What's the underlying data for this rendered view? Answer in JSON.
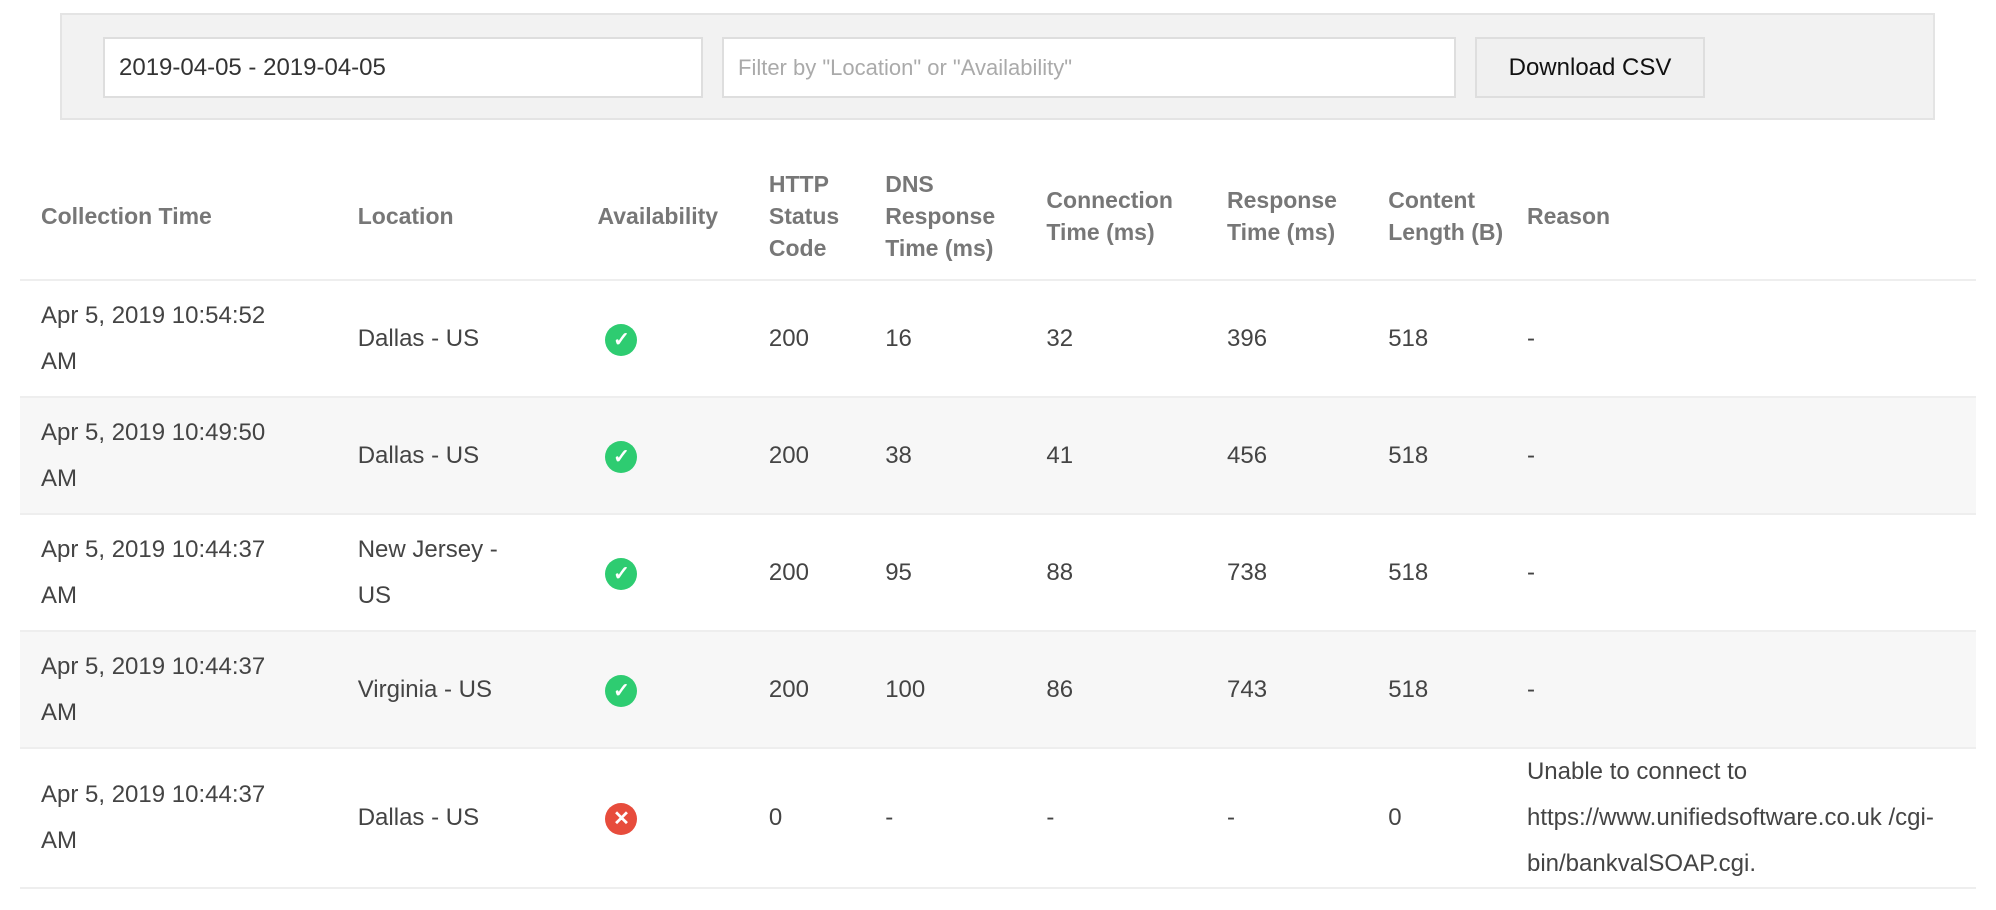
{
  "toolbar": {
    "date_range": "2019-04-05 - 2019-04-05",
    "filter_placeholder": "Filter by \"Location\" or \"Availability\"",
    "download_label": "Download CSV"
  },
  "colors": {
    "up": "#2ecc71",
    "down": "#e74c3c"
  },
  "table": {
    "headers": [
      "Collection Time",
      "Location",
      "Availability",
      "HTTP Status Code",
      "DNS Response Time (ms)",
      "Connection Time (ms)",
      "Response Time (ms)",
      "Content Length (B)",
      "Reason"
    ],
    "rows": [
      {
        "time": "Apr 5, 2019 10:54:52 AM",
        "location": "Dallas - US",
        "availability": "up",
        "availability_icon": "check-circle-icon",
        "status": "200",
        "dns": "16",
        "connection": "32",
        "response": "396",
        "length": "518",
        "reason": "-"
      },
      {
        "time": "Apr 5, 2019 10:49:50 AM",
        "location": "Dallas - US",
        "availability": "up",
        "availability_icon": "check-circle-icon",
        "status": "200",
        "dns": "38",
        "connection": "41",
        "response": "456",
        "length": "518",
        "reason": "-"
      },
      {
        "time": "Apr 5, 2019 10:44:37 AM",
        "location": "New Jersey - US",
        "availability": "up",
        "availability_icon": "check-circle-icon",
        "status": "200",
        "dns": "95",
        "connection": "88",
        "response": "738",
        "length": "518",
        "reason": "-"
      },
      {
        "time": "Apr 5, 2019 10:44:37 AM",
        "location": "Virginia - US",
        "availability": "up",
        "availability_icon": "check-circle-icon",
        "status": "200",
        "dns": "100",
        "connection": "86",
        "response": "743",
        "length": "518",
        "reason": "-"
      },
      {
        "time": "Apr 5, 2019 10:44:37 AM",
        "location": "Dallas - US",
        "availability": "down",
        "availability_icon": "x-circle-icon",
        "status": "0",
        "dns": "-",
        "connection": "-",
        "response": "-",
        "length": "0",
        "reason": "Unable to connect to https://www.unifiedsoftware.co.uk /cgi-bin/bankvalSOAP.cgi."
      }
    ]
  }
}
